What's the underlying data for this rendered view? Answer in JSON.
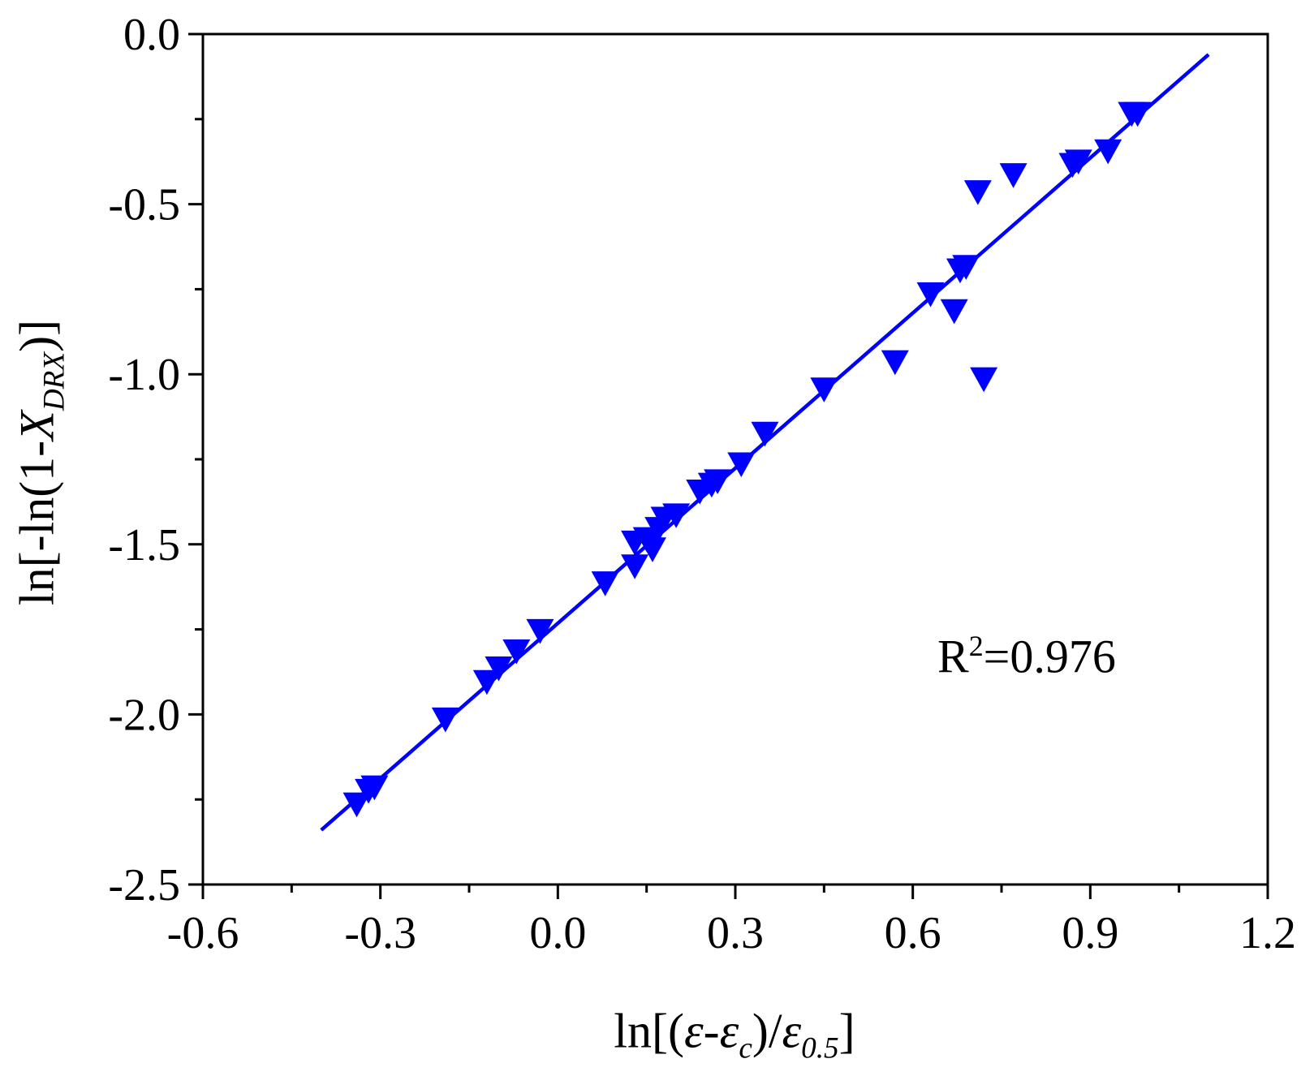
{
  "chart_data": {
    "type": "scatter",
    "title": "",
    "xlabel_parts": {
      "prefix": "ln[(",
      "eps": "ε",
      "dash": "-",
      "eps_c": "ε",
      "sub_c": "c",
      "mid": ")/",
      "eps_05": "ε",
      "sub_05": "0.5",
      "suffix": "]"
    },
    "ylabel_parts": {
      "prefix": "ln[-ln(1-",
      "x": "X",
      "sub": "DRX",
      "suffix": ")]"
    },
    "annotation": {
      "base": "R",
      "sup": "2",
      "rest": "=0.976"
    },
    "xlim": [
      -0.6,
      1.2
    ],
    "ylim": [
      -2.5,
      0.0
    ],
    "xticks": [
      "-0.6",
      "-0.3",
      "0.0",
      "0.3",
      "0.6",
      "0.9",
      "1.2"
    ],
    "yticks": [
      "0.0",
      "-0.5",
      "-1.0",
      "-1.5",
      "-2.0",
      "-2.5"
    ],
    "marker_color": "#0000ff",
    "line_color": "#0000ff",
    "series": [
      {
        "marker": "triangle-down",
        "points": [
          [
            -0.34,
            -2.26
          ],
          [
            -0.32,
            -2.22
          ],
          [
            -0.31,
            -2.21
          ],
          [
            -0.19,
            -2.01
          ],
          [
            -0.12,
            -1.9
          ],
          [
            -0.1,
            -1.86
          ],
          [
            -0.07,
            -1.81
          ],
          [
            -0.03,
            -1.75
          ],
          [
            0.08,
            -1.61
          ],
          [
            0.13,
            -1.56
          ],
          [
            0.13,
            -1.49
          ],
          [
            0.15,
            -1.48
          ],
          [
            0.16,
            -1.51
          ],
          [
            0.17,
            -1.45
          ],
          [
            0.18,
            -1.42
          ],
          [
            0.2,
            -1.41
          ],
          [
            0.24,
            -1.34
          ],
          [
            0.26,
            -1.32
          ],
          [
            0.27,
            -1.31
          ],
          [
            0.31,
            -1.26
          ],
          [
            0.35,
            -1.17
          ],
          [
            0.45,
            -1.04
          ],
          [
            0.57,
            -0.96
          ],
          [
            0.63,
            -0.76
          ],
          [
            0.67,
            -0.81
          ],
          [
            0.68,
            -0.69
          ],
          [
            0.69,
            -0.68
          ],
          [
            0.71,
            -0.46
          ],
          [
            0.72,
            -1.01
          ],
          [
            0.77,
            -0.41
          ],
          [
            0.87,
            -0.38
          ],
          [
            0.88,
            -0.37
          ],
          [
            0.93,
            -0.34
          ],
          [
            0.97,
            -0.23
          ],
          [
            0.98,
            -0.23
          ]
        ]
      }
    ],
    "fit_line": {
      "x": [
        -0.4,
        1.1
      ],
      "y": [
        -2.34,
        -0.06
      ]
    }
  }
}
